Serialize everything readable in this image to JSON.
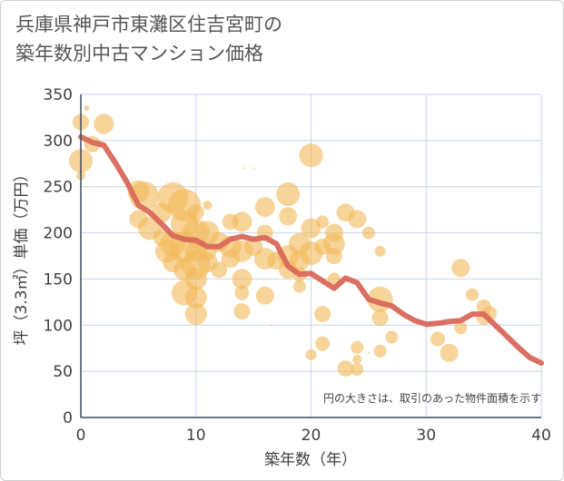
{
  "chart_data": {
    "type": "scatter",
    "title": [
      "兵庫県神戸市東灘区住吉宮町の",
      "築年数別中古マンション価格"
    ],
    "xlabel": "築年数（年）",
    "ylabel": "坪（3.3㎡）単価（万円）",
    "xlim": [
      0,
      40
    ],
    "ylim": [
      0,
      350
    ],
    "xticks": [
      0,
      10,
      20,
      30,
      40
    ],
    "yticks": [
      0,
      50,
      100,
      150,
      200,
      250,
      300,
      350
    ],
    "grid": true,
    "note": "円の大きさは、取引のあった物件面積を示す",
    "colors": {
      "bubble": "#f2b95a",
      "line": "#d9685a",
      "grid": "#c9d6e6",
      "axis": "#3d4a5c"
    },
    "bubbles": [
      {
        "x": 0,
        "y": 320,
        "r": 9
      },
      {
        "x": 0.5,
        "y": 335,
        "r": 3
      },
      {
        "x": 0,
        "y": 278,
        "r": 13
      },
      {
        "x": 0,
        "y": 262,
        "r": 5
      },
      {
        "x": 1,
        "y": 296,
        "r": 9
      },
      {
        "x": 2,
        "y": 318,
        "r": 11
      },
      {
        "x": 5,
        "y": 245,
        "r": 12
      },
      {
        "x": 5.5,
        "y": 240,
        "r": 16
      },
      {
        "x": 5,
        "y": 215,
        "r": 10
      },
      {
        "x": 6,
        "y": 205,
        "r": 13
      },
      {
        "x": 7,
        "y": 222,
        "r": 11
      },
      {
        "x": 7,
        "y": 195,
        "r": 9
      },
      {
        "x": 7.5,
        "y": 180,
        "r": 13
      },
      {
        "x": 8,
        "y": 238,
        "r": 17
      },
      {
        "x": 8,
        "y": 188,
        "r": 14
      },
      {
        "x": 8,
        "y": 168,
        "r": 11
      },
      {
        "x": 9,
        "y": 230,
        "r": 18
      },
      {
        "x": 9,
        "y": 210,
        "r": 15
      },
      {
        "x": 9,
        "y": 185,
        "r": 17
      },
      {
        "x": 9,
        "y": 160,
        "r": 12
      },
      {
        "x": 9,
        "y": 135,
        "r": 14
      },
      {
        "x": 10,
        "y": 200,
        "r": 15
      },
      {
        "x": 10,
        "y": 180,
        "r": 12
      },
      {
        "x": 10,
        "y": 165,
        "r": 16
      },
      {
        "x": 10,
        "y": 150,
        "r": 12
      },
      {
        "x": 10,
        "y": 130,
        "r": 12
      },
      {
        "x": 10,
        "y": 112,
        "r": 12
      },
      {
        "x": 10,
        "y": 222,
        "r": 9
      },
      {
        "x": 11,
        "y": 230,
        "r": 5
      },
      {
        "x": 11,
        "y": 200,
        "r": 13
      },
      {
        "x": 11,
        "y": 180,
        "r": 10
      },
      {
        "x": 11,
        "y": 168,
        "r": 11
      },
      {
        "x": 12,
        "y": 190,
        "r": 11
      },
      {
        "x": 12,
        "y": 160,
        "r": 9
      },
      {
        "x": 13,
        "y": 212,
        "r": 9
      },
      {
        "x": 13,
        "y": 185,
        "r": 12
      },
      {
        "x": 13,
        "y": 172,
        "r": 10
      },
      {
        "x": 14,
        "y": 212,
        "r": 11
      },
      {
        "x": 14,
        "y": 180,
        "r": 12
      },
      {
        "x": 14,
        "y": 150,
        "r": 11
      },
      {
        "x": 14,
        "y": 135,
        "r": 8
      },
      {
        "x": 14,
        "y": 115,
        "r": 9
      },
      {
        "x": 14.2,
        "y": 270,
        "r": 1
      },
      {
        "x": 15,
        "y": 270,
        "r": 1
      },
      {
        "x": 15,
        "y": 185,
        "r": 10
      },
      {
        "x": 16,
        "y": 228,
        "r": 11
      },
      {
        "x": 16,
        "y": 200,
        "r": 9
      },
      {
        "x": 16,
        "y": 172,
        "r": 12
      },
      {
        "x": 16,
        "y": 132,
        "r": 10
      },
      {
        "x": 16.5,
        "y": 100,
        "r": 1
      },
      {
        "x": 17,
        "y": 170,
        "r": 10
      },
      {
        "x": 18,
        "y": 242,
        "r": 13
      },
      {
        "x": 18,
        "y": 218,
        "r": 10
      },
      {
        "x": 18,
        "y": 175,
        "r": 12
      },
      {
        "x": 18,
        "y": 160,
        "r": 10
      },
      {
        "x": 19,
        "y": 188,
        "r": 12
      },
      {
        "x": 19,
        "y": 170,
        "r": 11
      },
      {
        "x": 19,
        "y": 155,
        "r": 8
      },
      {
        "x": 19,
        "y": 142,
        "r": 7
      },
      {
        "x": 20,
        "y": 284,
        "r": 13
      },
      {
        "x": 20,
        "y": 205,
        "r": 11
      },
      {
        "x": 20,
        "y": 178,
        "r": 13
      },
      {
        "x": 20,
        "y": 68,
        "r": 6
      },
      {
        "x": 21,
        "y": 212,
        "r": 7
      },
      {
        "x": 21,
        "y": 185,
        "r": 9
      },
      {
        "x": 21,
        "y": 112,
        "r": 9
      },
      {
        "x": 21,
        "y": 80,
        "r": 8
      },
      {
        "x": 22,
        "y": 200,
        "r": 10
      },
      {
        "x": 22,
        "y": 188,
        "r": 12
      },
      {
        "x": 22,
        "y": 175,
        "r": 9
      },
      {
        "x": 22,
        "y": 150,
        "r": 7
      },
      {
        "x": 23,
        "y": 222,
        "r": 10
      },
      {
        "x": 23,
        "y": 53,
        "r": 9
      },
      {
        "x": 24,
        "y": 215,
        "r": 10
      },
      {
        "x": 24,
        "y": 76,
        "r": 7
      },
      {
        "x": 24,
        "y": 52,
        "r": 7
      },
      {
        "x": 24,
        "y": 63,
        "r": 5
      },
      {
        "x": 25,
        "y": 200,
        "r": 7
      },
      {
        "x": 25,
        "y": 70,
        "r": 1
      },
      {
        "x": 26,
        "y": 180,
        "r": 6
      },
      {
        "x": 26,
        "y": 128,
        "r": 14
      },
      {
        "x": 26,
        "y": 108,
        "r": 9
      },
      {
        "x": 26,
        "y": 72,
        "r": 7
      },
      {
        "x": 27,
        "y": 87,
        "r": 7
      },
      {
        "x": 31,
        "y": 85,
        "r": 8
      },
      {
        "x": 32,
        "y": 70,
        "r": 10
      },
      {
        "x": 33,
        "y": 162,
        "r": 10
      },
      {
        "x": 33,
        "y": 97,
        "r": 7
      },
      {
        "x": 34,
        "y": 133,
        "r": 7
      },
      {
        "x": 35,
        "y": 120,
        "r": 8
      },
      {
        "x": 35,
        "y": 108,
        "r": 8
      },
      {
        "x": 35.5,
        "y": 113,
        "r": 8
      }
    ],
    "trend": {
      "x": [
        0,
        1,
        2,
        3,
        4,
        5,
        6,
        7,
        8,
        9,
        10,
        11,
        12,
        13,
        14,
        15,
        16,
        17,
        18,
        19,
        20,
        21,
        22,
        23,
        24,
        25,
        26,
        27,
        28,
        29,
        30,
        31,
        32,
        33,
        34,
        35,
        36,
        37,
        38,
        39,
        40
      ],
      "y": [
        304,
        298,
        295,
        276,
        255,
        230,
        222,
        210,
        197,
        193,
        192,
        185,
        185,
        193,
        196,
        193,
        195,
        188,
        164,
        155,
        156,
        148,
        140,
        151,
        146,
        128,
        124,
        121,
        112,
        105,
        101,
        102,
        104,
        105,
        112,
        112,
        100,
        88,
        76,
        65,
        59
      ]
    }
  }
}
